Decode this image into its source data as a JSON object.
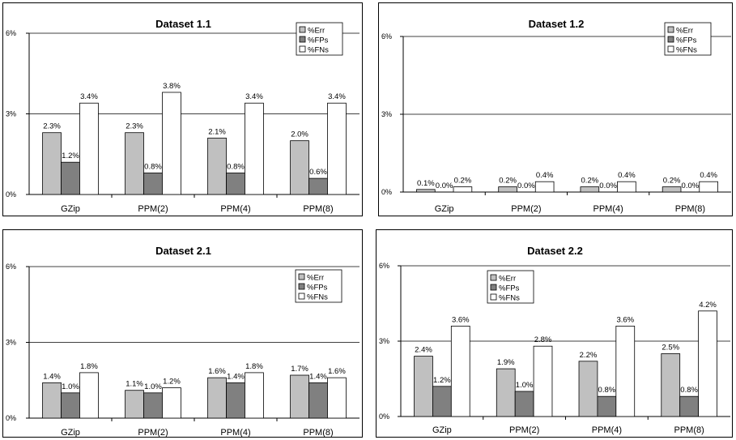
{
  "colors": {
    "%Err": "#c0c0c0",
    "%FPs": "#808080",
    "%FNs": "#ffffff"
  },
  "chart_data": [
    {
      "type": "bar",
      "title": "Dataset 1.1",
      "categories": [
        "GZip",
        "PPM(2)",
        "PPM(4)",
        "PPM(8)"
      ],
      "ylim": [
        0,
        6
      ],
      "yticks": [
        "0%",
        "3%",
        "6%"
      ],
      "grid": true,
      "legend_position": "top-right",
      "series": [
        {
          "name": "%Err",
          "values": [
            2.3,
            2.3,
            2.1,
            2.0
          ],
          "labels": [
            "2.3%",
            "2.3%",
            "2.1%",
            "2.0%"
          ]
        },
        {
          "name": "%FPs",
          "values": [
            1.2,
            0.8,
            0.8,
            0.6
          ],
          "labels": [
            "1.2%",
            "0.8%",
            "0.8%",
            "0.6%"
          ]
        },
        {
          "name": "%FNs",
          "values": [
            3.4,
            3.8,
            3.4,
            3.4
          ],
          "labels": [
            "3.4%",
            "3.8%",
            "3.4%",
            "3.4%"
          ]
        }
      ]
    },
    {
      "type": "bar",
      "title": "Dataset 1.2",
      "categories": [
        "GZip",
        "PPM(2)",
        "PPM(4)",
        "PPM(8)"
      ],
      "ylim": [
        0,
        6
      ],
      "yticks": [
        "0%",
        "3%",
        "6%"
      ],
      "grid": true,
      "legend_position": "top-right",
      "series": [
        {
          "name": "%Err",
          "values": [
            0.1,
            0.2,
            0.2,
            0.2
          ],
          "labels": [
            "0.1%",
            "0.2%",
            "0.2%",
            "0.2%"
          ]
        },
        {
          "name": "%FPs",
          "values": [
            0.0,
            0.0,
            0.0,
            0.0
          ],
          "labels": [
            "0.0%",
            "0.0%",
            "0.0%",
            "0.0%"
          ]
        },
        {
          "name": "%FNs",
          "values": [
            0.2,
            0.4,
            0.4,
            0.4
          ],
          "labels": [
            "0.2%",
            "0.4%",
            "0.4%",
            "0.4%"
          ]
        }
      ]
    },
    {
      "type": "bar",
      "title": "Dataset 2.1",
      "categories": [
        "GZip",
        "PPM(2)",
        "PPM(4)",
        "PPM(8)"
      ],
      "ylim": [
        0,
        6
      ],
      "yticks": [
        "0%",
        "3%",
        "6%"
      ],
      "grid": true,
      "legend_position": "top-right",
      "series": [
        {
          "name": "%Err",
          "values": [
            1.4,
            1.1,
            1.6,
            1.7
          ],
          "labels": [
            "1.4%",
            "1.1%",
            "1.6%",
            "1.7%"
          ]
        },
        {
          "name": "%FPs",
          "values": [
            1.0,
            1.0,
            1.4,
            1.4
          ],
          "labels": [
            "1.0%",
            "1.0%",
            "1.4%",
            "1.4%"
          ]
        },
        {
          "name": "%FNs",
          "values": [
            1.8,
            1.2,
            1.8,
            1.6
          ],
          "labels": [
            "1.8%",
            "1.2%",
            "1.8%",
            "1.6%"
          ]
        }
      ]
    },
    {
      "type": "bar",
      "title": "Dataset 2.2",
      "categories": [
        "GZip",
        "PPM(2)",
        "PPM(4)",
        "PPM(8)"
      ],
      "ylim": [
        0,
        6
      ],
      "yticks": [
        "0%",
        "3%",
        "6%"
      ],
      "grid": true,
      "legend_position": "top-left",
      "series": [
        {
          "name": "%Err",
          "values": [
            2.4,
            1.9,
            2.2,
            2.5
          ],
          "labels": [
            "2.4%",
            "1.9%",
            "2.2%",
            "2.5%"
          ]
        },
        {
          "name": "%FPs",
          "values": [
            1.2,
            1.0,
            0.8,
            0.8
          ],
          "labels": [
            "1.2%",
            "1.0%",
            "0.8%",
            "0.8%"
          ]
        },
        {
          "name": "%FNs",
          "values": [
            3.6,
            2.8,
            3.6,
            4.2
          ],
          "labels": [
            "3.6%",
            "2.8%",
            "3.6%",
            "4.2%"
          ]
        }
      ]
    }
  ]
}
